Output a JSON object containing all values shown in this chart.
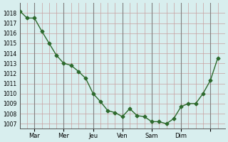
{
  "x_values": [
    0,
    0.5,
    1,
    1.5,
    2,
    2.5,
    3,
    3.5,
    4,
    4.5,
    5,
    5.5,
    6,
    6.5,
    7,
    7.5,
    8,
    8.5,
    9,
    9.5,
    10,
    10.5,
    11,
    11.5,
    12,
    12.5,
    13,
    13.5
  ],
  "y_values": [
    1018.2,
    1017.5,
    1017.5,
    1016.2,
    1015.0,
    1013.8,
    1013.0,
    1012.8,
    1012.2,
    1011.5,
    1010.0,
    1009.2,
    1008.3,
    1008.1,
    1007.7,
    1008.5,
    1007.8,
    1007.7,
    1007.2,
    1007.2,
    1007.0,
    1007.5,
    1008.7,
    1009.0,
    1009.0,
    1010.0,
    1011.3,
    1013.5
  ],
  "day_ticks_x": [
    1,
    3,
    5,
    7,
    9,
    11,
    13
  ],
  "day_labels": [
    "Mar",
    "Mer",
    "Jeu",
    "Ven",
    "Sam",
    "Dim",
    ""
  ],
  "ytick_min": 1007,
  "ytick_max": 1018,
  "ytick_step": 1,
  "line_color": "#2d6a2d",
  "marker_color": "#2d6a2d",
  "bg_color": "#d8eeee",
  "grid_color_major": "#b0b0b0",
  "grid_color_minor": "#d4a0a0"
}
